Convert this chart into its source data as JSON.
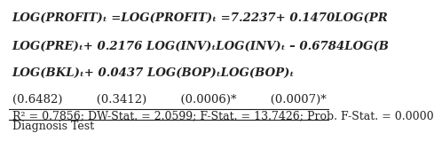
{
  "line1": "LOG(PROFIT)ₜ =LOG(PROFIT)ₜ =7.2237+ 0.1470LOG(PR",
  "line2": "LOG(PRE)ₜ+ 0.2176 LOG(INV)ₜLOG(INV)ₜ – 0.6784LOG(B",
  "line3": "LOG(BKL)ₜ+ 0.0437 LOG(BOP)ₜLOG(BOP)ₜ",
  "line4": "(0.6482)         (0.3412)         (0.0006)*         (0.0007)*",
  "line5": "R² = 0.7856; DW-Stat. = 2.0599; F-Stat. = 13.7426; Prob. F-Stat. = 0.0000",
  "line6": "Diagnosis Test",
  "text_color": "#222222",
  "bg_color": "#ffffff",
  "font_size_main": 9.5,
  "font_size_stats": 9.0,
  "font_size_diag": 9.0
}
